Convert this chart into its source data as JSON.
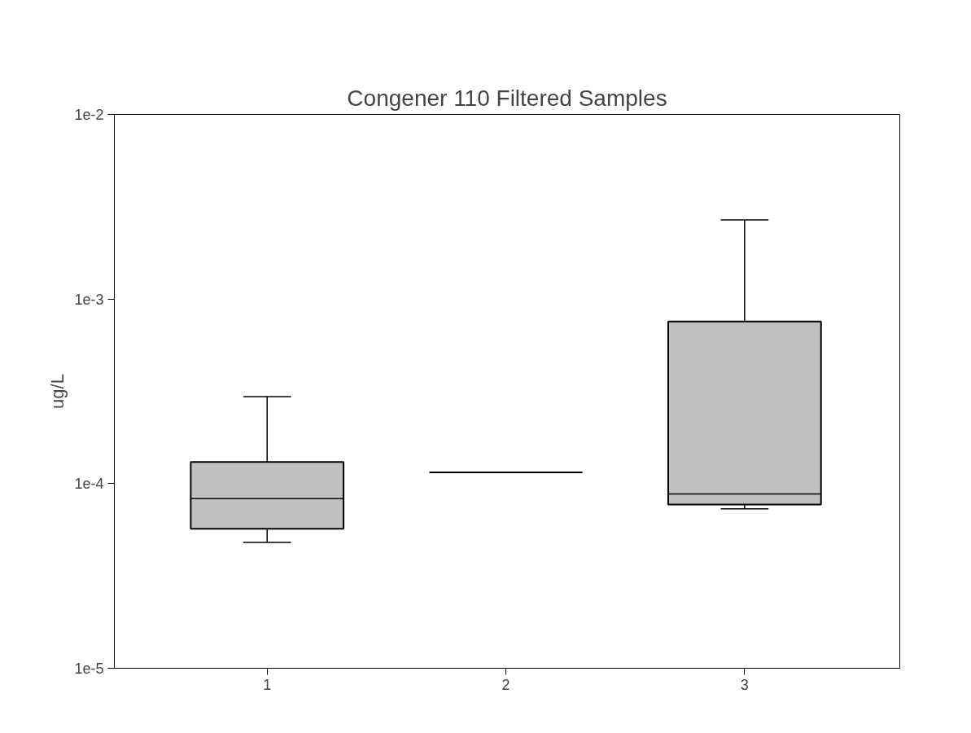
{
  "chart_data": {
    "type": "box",
    "title": "Congener 110 Filtered Samples",
    "ylabel": "ug/L",
    "log": true,
    "grid": false,
    "categories": [
      "1",
      "2",
      "3"
    ],
    "boxes": [
      {
        "low": 4.8e-05,
        "q1": 5.7e-05,
        "median": 8.3e-05,
        "q3": 0.000131,
        "high": 0.000296
      },
      {
        "low": 0.000115,
        "q1": 0.000115,
        "median": 0.000115,
        "q3": 0.000115,
        "high": 0.000115
      },
      {
        "low": 7.3e-05,
        "q1": 7.7e-05,
        "median": 8.8e-05,
        "q3": 0.000755,
        "high": 0.00268
      }
    ],
    "colors": [
      "#c0c0c0",
      "#000000",
      "#c0c0c0"
    ],
    "ylim": [
      1e-05,
      0.01
    ],
    "yticks": [
      {
        "value": 1e-05,
        "label": "1e-5"
      },
      {
        "value": 0.0001,
        "label": "1e-4"
      },
      {
        "value": 0.001,
        "label": "1e-3"
      },
      {
        "value": 0.01,
        "label": "1e-2"
      }
    ]
  }
}
